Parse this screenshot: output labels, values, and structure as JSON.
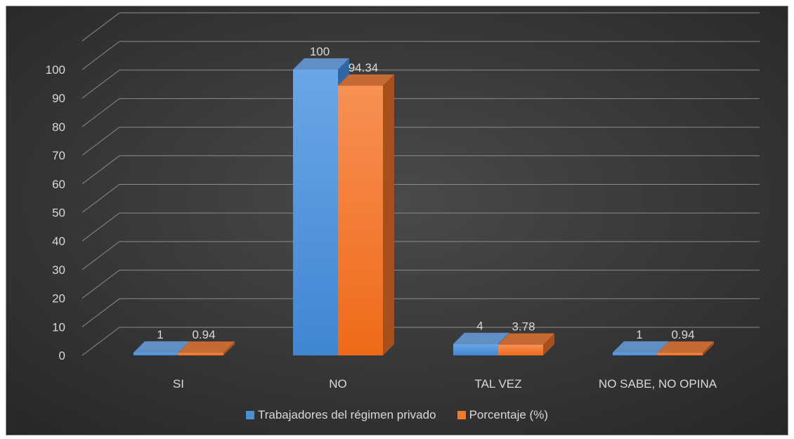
{
  "chart_data": {
    "type": "bar",
    "style": "3d-clustered-column",
    "categories": [
      "SI",
      "NO",
      "TAL VEZ",
      "NO SABE, NO OPINA"
    ],
    "series": [
      {
        "name": "Trabajadores del régimen privado",
        "values": [
          1,
          100,
          4,
          1
        ],
        "labels": [
          "1",
          "100",
          "4",
          "1"
        ],
        "color": "#4a8ed6"
      },
      {
        "name": "Porcentaje (%)",
        "values": [
          0.94,
          94.34,
          3.78,
          0.94
        ],
        "labels": [
          "0.94",
          "94.34",
          "3.78",
          "0.94"
        ],
        "color": "#f07a2c"
      }
    ],
    "y_ticks": [
      "0",
      "10",
      "20",
      "30",
      "40",
      "50",
      "60",
      "70",
      "80",
      "90",
      "100"
    ],
    "ylim": [
      0,
      110
    ],
    "grid": true,
    "legend": "bottom",
    "background": "#3c3c3c",
    "gridline_color": "#8c8c8c"
  }
}
